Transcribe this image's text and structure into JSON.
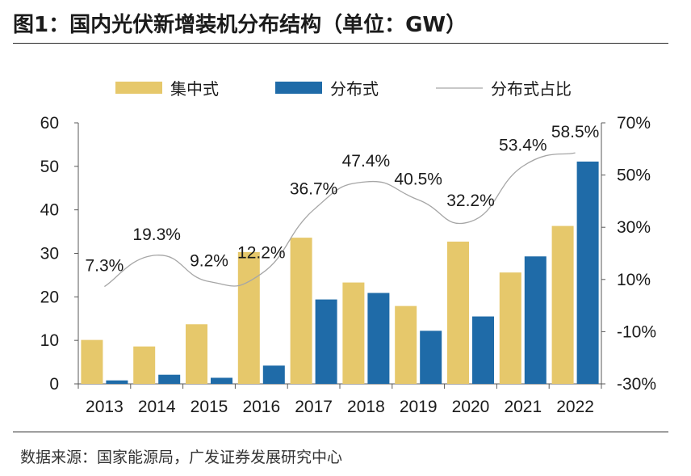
{
  "title": "图1：国内光伏新增装机分布结构（单位：GW）",
  "source": "数据来源：国家能源局，广发证券发展研究中心",
  "colors": {
    "centralized": "#e6c86b",
    "distributed": "#1f6ba8",
    "share_line": "#a6a6a6",
    "axis": "#595959",
    "text": "#1b1b1b"
  },
  "chart_data": {
    "type": "bar",
    "title": "国内光伏新增装机分布结构（单位：GW）",
    "categories": [
      "2013",
      "2014",
      "2015",
      "2016",
      "2017",
      "2018",
      "2019",
      "2020",
      "2021",
      "2022"
    ],
    "series": [
      {
        "name": "集中式",
        "kind": "bar",
        "axis": "left",
        "values": [
          10.1,
          8.6,
          13.7,
          30.3,
          33.6,
          23.3,
          17.9,
          32.7,
          25.6,
          36.3
        ]
      },
      {
        "name": "分布式",
        "kind": "bar",
        "axis": "left",
        "values": [
          0.8,
          2.1,
          1.4,
          4.2,
          19.4,
          20.9,
          12.2,
          15.5,
          29.3,
          51.1
        ]
      },
      {
        "name": "分布式占比",
        "kind": "line",
        "axis": "right",
        "smooth": true,
        "values": [
          7.3,
          19.3,
          9.2,
          12.2,
          36.7,
          47.4,
          40.5,
          32.2,
          53.4,
          58.5
        ],
        "labels": [
          "7.3%",
          "19.3%",
          "9.2%",
          "12.2%",
          "36.7%",
          "47.4%",
          "40.5%",
          "32.2%",
          "53.4%",
          "58.5%"
        ]
      }
    ],
    "y_left": {
      "range": [
        0,
        60
      ],
      "ticks": [
        "0",
        "10",
        "20",
        "30",
        "40",
        "50",
        "60"
      ]
    },
    "y_right": {
      "range": [
        -30,
        70
      ],
      "ticks": [
        "-30%",
        "-10%",
        "10%",
        "30%",
        "50%",
        "70%"
      ]
    },
    "legend": {
      "position": "top",
      "labels": [
        "集中式",
        "分布式",
        "分布式占比"
      ]
    },
    "grid": false
  }
}
